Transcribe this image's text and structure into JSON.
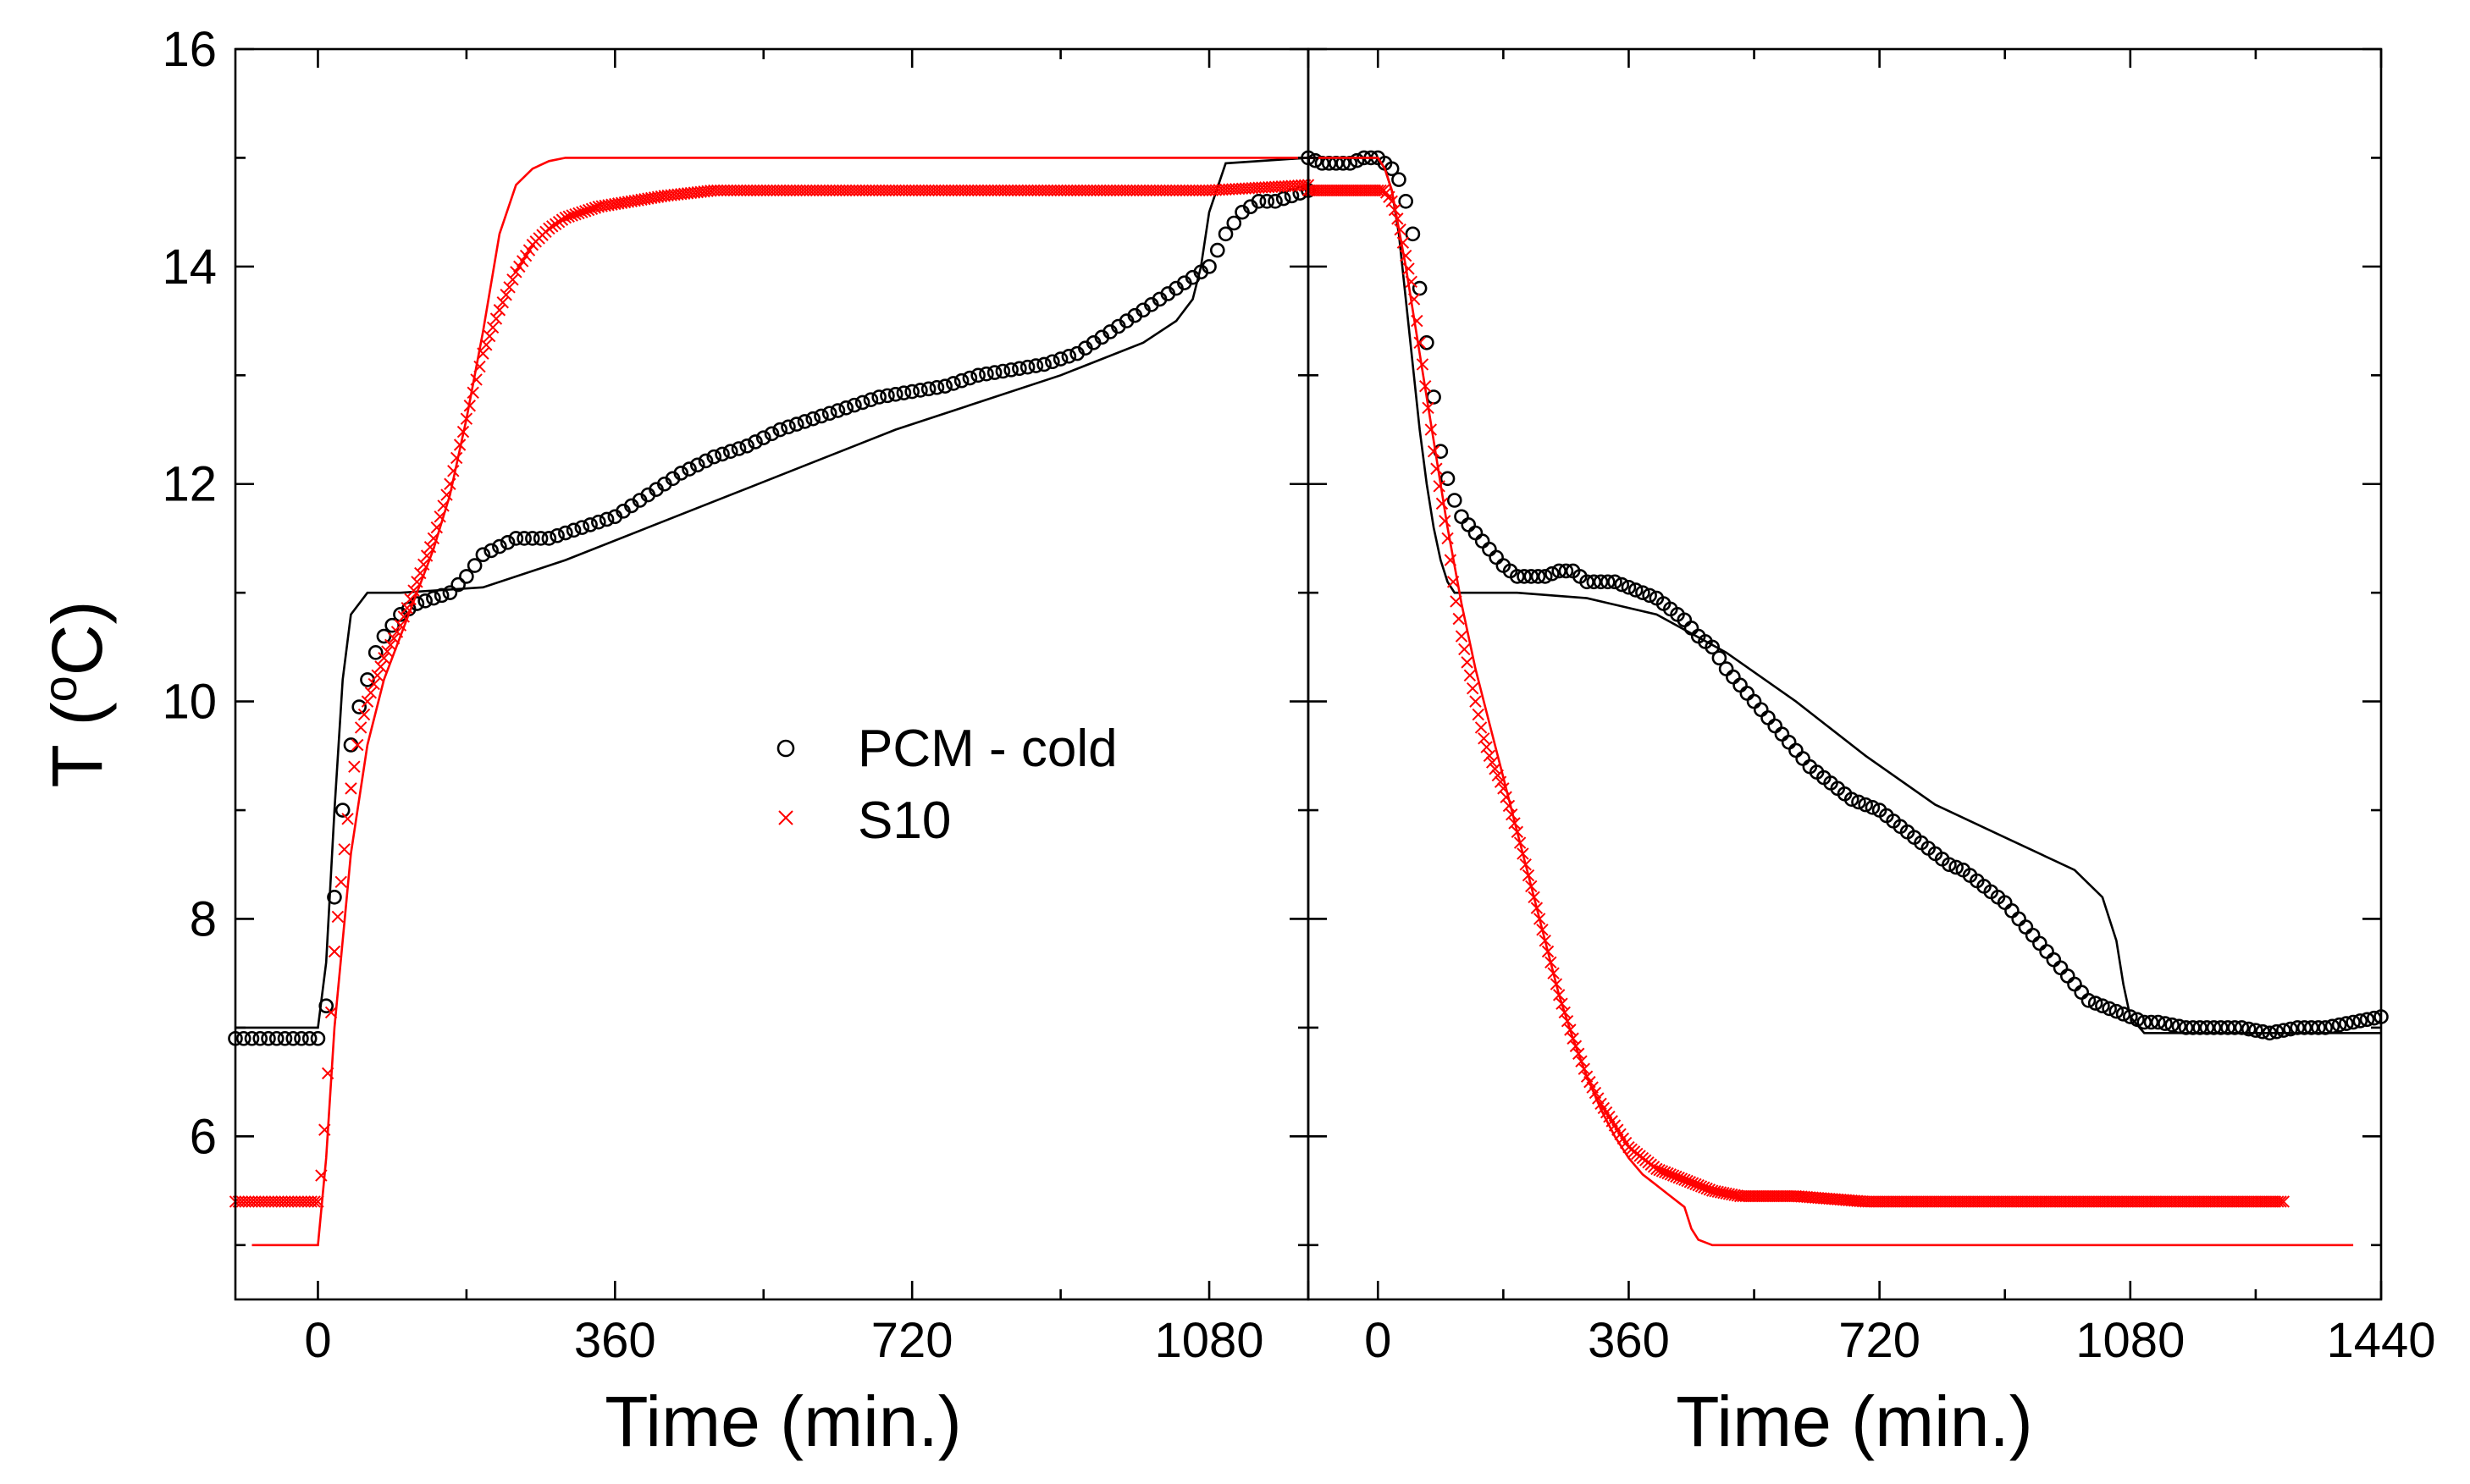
{
  "chart_data": [
    {
      "type": "scatter",
      "panel": "left",
      "xlabel": "Time (min.)",
      "ylabel": "T (oC)",
      "ylabel_parts": [
        "T (",
        "o",
        "C)"
      ],
      "xlim": [
        -100,
        1200
      ],
      "ylim": [
        4.5,
        16
      ],
      "x_ticks": [
        0,
        360,
        720,
        1080
      ],
      "x_ticks_unlabeled": [
        1200
      ],
      "y_ticks": [
        6,
        8,
        10,
        12,
        14,
        16
      ],
      "grid": false,
      "legend_position": "center",
      "legend": [
        {
          "label": "PCM - cold",
          "marker": "circle",
          "color": "#000000"
        },
        {
          "label": "S10",
          "marker": "x",
          "color": "#ff0000"
        }
      ],
      "series": [
        {
          "name": "PCM - cold",
          "kind": "measured",
          "marker": "circle",
          "color": "#000000",
          "x": [
            -100,
            -80,
            -60,
            -40,
            -20,
            0,
            10,
            20,
            30,
            40,
            50,
            60,
            70,
            80,
            90,
            100,
            120,
            140,
            160,
            180,
            200,
            240,
            280,
            320,
            360,
            400,
            440,
            480,
            520,
            560,
            600,
            640,
            680,
            720,
            760,
            800,
            840,
            880,
            920,
            960,
            1000,
            1040,
            1080,
            1100,
            1120,
            1140,
            1160,
            1180,
            1200
          ],
          "y": [
            6.9,
            6.9,
            6.9,
            6.9,
            6.9,
            6.9,
            7.2,
            8.2,
            9.0,
            9.6,
            9.95,
            10.2,
            10.45,
            10.6,
            10.7,
            10.8,
            10.9,
            10.95,
            11.0,
            11.15,
            11.35,
            11.5,
            11.5,
            11.6,
            11.7,
            11.9,
            12.1,
            12.25,
            12.35,
            12.5,
            12.6,
            12.7,
            12.8,
            12.85,
            12.9,
            13.0,
            13.05,
            13.1,
            13.2,
            13.4,
            13.6,
            13.8,
            14.0,
            14.3,
            14.5,
            14.6,
            14.6,
            14.65,
            14.7
          ]
        },
        {
          "name": "PCM - cold",
          "kind": "model",
          "color": "#000000",
          "x": [
            -100,
            0,
            10,
            20,
            30,
            40,
            60,
            80,
            100,
            200,
            300,
            400,
            500,
            600,
            700,
            800,
            900,
            1000,
            1040,
            1060,
            1070,
            1080,
            1100,
            1200
          ],
          "y": [
            7.0,
            7.0,
            7.6,
            9.0,
            10.2,
            10.8,
            11.0,
            11.0,
            11.0,
            11.05,
            11.3,
            11.6,
            11.9,
            12.2,
            12.5,
            12.75,
            13.0,
            13.3,
            13.5,
            13.7,
            14.0,
            14.5,
            14.95,
            15.0
          ]
        },
        {
          "name": "S10",
          "kind": "measured",
          "marker": "x",
          "color": "#ff0000",
          "x": [
            -100,
            -80,
            -60,
            -40,
            -20,
            0,
            5,
            10,
            15,
            20,
            30,
            40,
            50,
            60,
            80,
            100,
            120,
            140,
            160,
            180,
            200,
            220,
            240,
            260,
            280,
            300,
            340,
            380,
            420,
            480,
            600,
            720,
            840,
            960,
            1080,
            1200
          ],
          "y": [
            5.4,
            5.4,
            5.4,
            5.4,
            5.4,
            5.4,
            5.7,
            6.3,
            7.0,
            7.7,
            8.5,
            9.2,
            9.7,
            10.0,
            10.4,
            10.7,
            11.1,
            11.5,
            12.0,
            12.6,
            13.2,
            13.6,
            13.95,
            14.2,
            14.35,
            14.45,
            14.55,
            14.6,
            14.65,
            14.7,
            14.7,
            14.7,
            14.7,
            14.7,
            14.7,
            14.75
          ]
        },
        {
          "name": "S10",
          "kind": "model",
          "color": "#ff0000",
          "x": [
            -80,
            0,
            10,
            20,
            40,
            60,
            80,
            100,
            120,
            140,
            160,
            180,
            200,
            220,
            240,
            260,
            280,
            300,
            340,
            400,
            500,
            700,
            900,
            1100,
            1200
          ],
          "y": [
            5.0,
            5.0,
            5.8,
            7.0,
            8.6,
            9.6,
            10.2,
            10.6,
            11.0,
            11.4,
            11.9,
            12.6,
            13.4,
            14.3,
            14.75,
            14.9,
            14.97,
            15.0,
            15.0,
            15.0,
            15.0,
            15.0,
            15.0,
            15.0,
            15.0
          ]
        }
      ]
    },
    {
      "type": "scatter",
      "panel": "right",
      "xlabel": "Time (min.)",
      "xlim": [
        -100,
        1440
      ],
      "ylim": [
        4.5,
        16
      ],
      "x_ticks": [
        0,
        360,
        720,
        1080,
        1440
      ],
      "y_ticks": [
        6,
        8,
        10,
        12,
        14,
        16
      ],
      "grid": false,
      "series": [
        {
          "name": "PCM - cold",
          "kind": "measured",
          "marker": "circle",
          "color": "#000000",
          "x": [
            -100,
            -80,
            -60,
            -40,
            -20,
            0,
            10,
            20,
            30,
            40,
            50,
            60,
            70,
            80,
            90,
            100,
            110,
            120,
            140,
            160,
            180,
            200,
            220,
            240,
            260,
            280,
            300,
            320,
            340,
            360,
            380,
            400,
            420,
            440,
            460,
            480,
            500,
            520,
            540,
            560,
            580,
            600,
            620,
            640,
            660,
            680,
            700,
            720,
            740,
            760,
            780,
            800,
            820,
            840,
            860,
            880,
            900,
            920,
            940,
            960,
            980,
            1000,
            1020,
            1040,
            1060,
            1080,
            1100,
            1120,
            1160,
            1200,
            1240,
            1280,
            1320,
            1360,
            1400,
            1440
          ],
          "y": [
            15.0,
            14.95,
            14.95,
            14.95,
            15.0,
            15.0,
            14.95,
            14.9,
            14.8,
            14.6,
            14.3,
            13.8,
            13.3,
            12.8,
            12.3,
            12.05,
            11.85,
            11.7,
            11.55,
            11.4,
            11.25,
            11.15,
            11.15,
            11.15,
            11.2,
            11.2,
            11.1,
            11.1,
            11.1,
            11.05,
            11.0,
            10.95,
            10.85,
            10.75,
            10.6,
            10.5,
            10.3,
            10.15,
            10.0,
            9.85,
            9.7,
            9.55,
            9.4,
            9.3,
            9.2,
            9.1,
            9.05,
            9.0,
            8.9,
            8.8,
            8.7,
            8.6,
            8.5,
            8.45,
            8.35,
            8.25,
            8.15,
            8.0,
            7.85,
            7.7,
            7.55,
            7.4,
            7.25,
            7.2,
            7.15,
            7.1,
            7.05,
            7.05,
            7.0,
            7.0,
            7.0,
            6.95,
            7.0,
            7.0,
            7.05,
            7.1
          ]
        },
        {
          "name": "PCM - cold",
          "kind": "model",
          "color": "#000000",
          "x": [
            -100,
            0,
            10,
            20,
            30,
            40,
            50,
            60,
            70,
            80,
            90,
            100,
            110,
            120,
            200,
            300,
            400,
            500,
            600,
            700,
            800,
            900,
            1000,
            1040,
            1060,
            1070,
            1080,
            1100,
            1200,
            1300,
            1400,
            1440
          ],
          "y": [
            15.0,
            15.0,
            14.9,
            14.7,
            14.3,
            13.7,
            13.1,
            12.5,
            12.0,
            11.6,
            11.3,
            11.1,
            11.0,
            11.0,
            11.0,
            10.95,
            10.8,
            10.45,
            10.0,
            9.5,
            9.05,
            8.75,
            8.45,
            8.2,
            7.8,
            7.4,
            7.1,
            6.95,
            6.95,
            6.95,
            6.95,
            6.95
          ]
        },
        {
          "name": "S10",
          "kind": "measured",
          "marker": "x",
          "color": "#ff0000",
          "x": [
            -100,
            -80,
            -60,
            -40,
            -20,
            0,
            10,
            20,
            30,
            40,
            50,
            60,
            70,
            80,
            90,
            100,
            110,
            120,
            130,
            140,
            150,
            160,
            180,
            200,
            220,
            240,
            260,
            280,
            300,
            320,
            340,
            360,
            380,
            400,
            420,
            440,
            460,
            480,
            520,
            560,
            600,
            700,
            800,
            900,
            1000,
            1100,
            1200,
            1300
          ],
          "y": [
            14.7,
            14.7,
            14.7,
            14.7,
            14.7,
            14.7,
            14.7,
            14.6,
            14.4,
            14.1,
            13.8,
            13.3,
            12.8,
            12.3,
            11.9,
            11.5,
            11.0,
            10.6,
            10.3,
            10.0,
            9.7,
            9.5,
            9.2,
            8.8,
            8.3,
            7.8,
            7.3,
            6.9,
            6.55,
            6.3,
            6.1,
            5.9,
            5.8,
            5.7,
            5.65,
            5.6,
            5.55,
            5.5,
            5.45,
            5.45,
            5.45,
            5.4,
            5.4,
            5.4,
            5.4,
            5.4,
            5.4,
            5.4
          ]
        },
        {
          "name": "S10",
          "kind": "model",
          "color": "#ff0000",
          "x": [
            -100,
            0,
            10,
            20,
            40,
            60,
            80,
            100,
            120,
            140,
            160,
            180,
            200,
            220,
            240,
            260,
            280,
            300,
            320,
            340,
            360,
            380,
            400,
            420,
            440,
            450,
            460,
            480,
            500,
            600,
            800,
            1000,
            1200,
            1400
          ],
          "y": [
            15.0,
            15.0,
            14.9,
            14.7,
            14.0,
            13.2,
            12.4,
            11.6,
            10.9,
            10.3,
            9.8,
            9.3,
            8.8,
            8.3,
            7.8,
            7.3,
            6.9,
            6.55,
            6.25,
            6.0,
            5.8,
            5.65,
            5.55,
            5.45,
            5.35,
            5.15,
            5.05,
            5.0,
            5.0,
            5.0,
            5.0,
            5.0,
            5.0,
            5.0
          ]
        }
      ]
    }
  ]
}
